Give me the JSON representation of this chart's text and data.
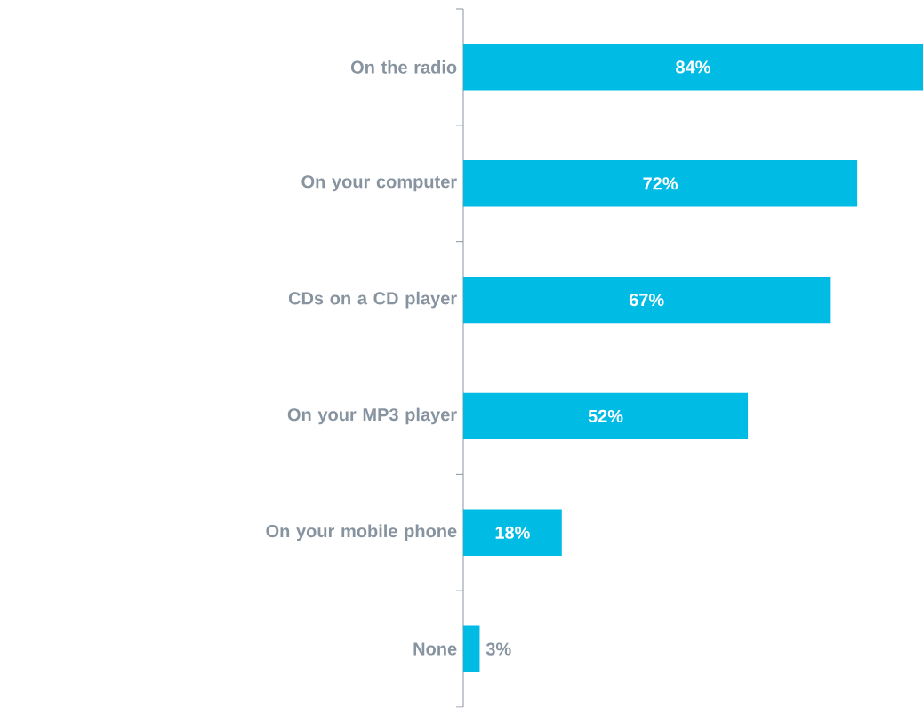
{
  "chart_data": {
    "type": "bar",
    "orientation": "horizontal",
    "categories": [
      "On the radio",
      "On your computer",
      "CDs on a CD player",
      "On your MP3 player",
      "On your mobile phone",
      "None"
    ],
    "values": [
      84,
      72,
      67,
      52,
      18,
      3
    ],
    "value_labels": [
      "84%",
      "72%",
      "67%",
      "52%",
      "18%",
      "3%"
    ],
    "color": "#00bce4"
  }
}
